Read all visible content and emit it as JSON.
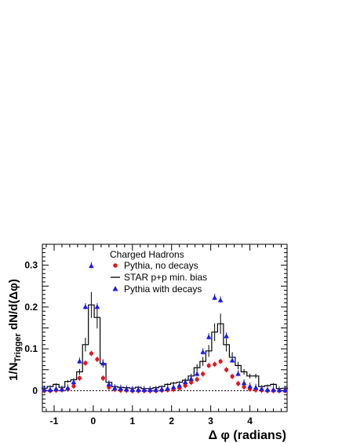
{
  "chart_data": {
    "type": "scatter",
    "xlabel": "Δ φ (radians)",
    "ylabel": "1/N_Trigger dN/d(Δφ)",
    "xlim": [
      -1.3,
      4.95
    ],
    "ylim": [
      -0.05,
      0.35
    ],
    "x_ticks": [
      "-1",
      "0",
      "1",
      "2",
      "3",
      "4"
    ],
    "y_ticks": [
      "0",
      "0.1",
      "0.2",
      "0.3"
    ],
    "legend_title": "Charged Hadrons",
    "legend_position": "top-center",
    "zero_line": "dotted",
    "series": [
      {
        "name": "Pythia, no decays",
        "marker": "circle",
        "color": "#e8141e",
        "x": [
          -1.25,
          -1.1,
          -0.95,
          -0.8,
          -0.65,
          -0.5,
          -0.35,
          -0.2,
          -0.05,
          0.1,
          0.25,
          0.4,
          0.55,
          0.7,
          0.85,
          1.0,
          1.15,
          1.3,
          1.45,
          1.6,
          1.75,
          1.9,
          2.05,
          2.2,
          2.35,
          2.5,
          2.65,
          2.8,
          2.95,
          3.1,
          3.25,
          3.4,
          3.55,
          3.7,
          3.85,
          4.0,
          4.15,
          4.3,
          4.45,
          4.6,
          4.75,
          4.9
        ],
        "y": [
          0,
          0,
          0.001,
          0.002,
          0.004,
          0.011,
          0.03,
          0.066,
          0.089,
          0.075,
          0.03,
          0.008,
          0.003,
          0.001,
          0.001,
          0,
          0,
          0,
          0,
          0,
          0.001,
          0.002,
          0.003,
          0.006,
          0.012,
          0.02,
          0.027,
          0.04,
          0.06,
          0.063,
          0.07,
          0.05,
          0.034,
          0.017,
          0.009,
          0.004,
          0.002,
          0.001,
          0,
          0,
          0,
          0
        ]
      },
      {
        "name": "STAR p+p min. bias",
        "marker": "step-line",
        "color": "#000000",
        "x": [
          -1.25,
          -1.1,
          -0.95,
          -0.8,
          -0.65,
          -0.5,
          -0.35,
          -0.2,
          -0.05,
          0.1,
          0.25,
          0.4,
          0.55,
          0.7,
          0.85,
          1.0,
          1.15,
          1.3,
          1.45,
          1.6,
          1.75,
          1.9,
          2.05,
          2.2,
          2.35,
          2.5,
          2.65,
          2.8,
          2.95,
          3.1,
          3.25,
          3.4,
          3.55,
          3.7,
          3.85,
          4.0,
          4.15,
          4.3,
          4.45,
          4.6,
          4.75,
          4.9
        ],
        "y": [
          0.006,
          0.01,
          0.015,
          0.008,
          0.022,
          0.026,
          0.045,
          0.11,
          0.205,
          0.175,
          0.065,
          0.02,
          0.01,
          0.008,
          0.007,
          0.006,
          0.008,
          0.005,
          0.005,
          0.007,
          0.01,
          0.015,
          0.018,
          0.02,
          0.025,
          0.035,
          0.055,
          0.07,
          0.095,
          0.14,
          0.16,
          0.11,
          0.08,
          0.06,
          0.045,
          0.035,
          0.035,
          0.01,
          0.012,
          0.015,
          0.005,
          0.006
        ]
      },
      {
        "name": "Pythia with decays",
        "marker": "triangle",
        "color": "#1a1aee",
        "x": [
          -1.25,
          -1.1,
          -0.95,
          -0.8,
          -0.65,
          -0.5,
          -0.35,
          -0.2,
          -0.05,
          0.1,
          0.25,
          0.4,
          0.55,
          0.7,
          0.85,
          1.0,
          1.15,
          1.3,
          1.45,
          1.6,
          1.75,
          1.9,
          2.05,
          2.2,
          2.35,
          2.5,
          2.65,
          2.8,
          2.95,
          3.1,
          3.25,
          3.4,
          3.55,
          3.7,
          3.85,
          4.0,
          4.15,
          4.3,
          4.45,
          4.6,
          4.75,
          4.9
        ],
        "y": [
          0.003,
          0.002,
          0.004,
          0.003,
          0.006,
          0.02,
          0.07,
          0.2,
          0.298,
          0.2,
          0.065,
          0.015,
          0.006,
          0.005,
          0.003,
          0.002,
          0.002,
          0.002,
          0.002,
          0.002,
          0.003,
          0.005,
          0.008,
          0.012,
          0.02,
          0.028,
          0.04,
          0.092,
          0.128,
          0.222,
          0.216,
          0.13,
          0.072,
          0.04,
          0.018,
          0.01,
          0.007,
          0.004,
          0.002,
          0.002,
          0.001,
          0.001
        ]
      }
    ]
  }
}
